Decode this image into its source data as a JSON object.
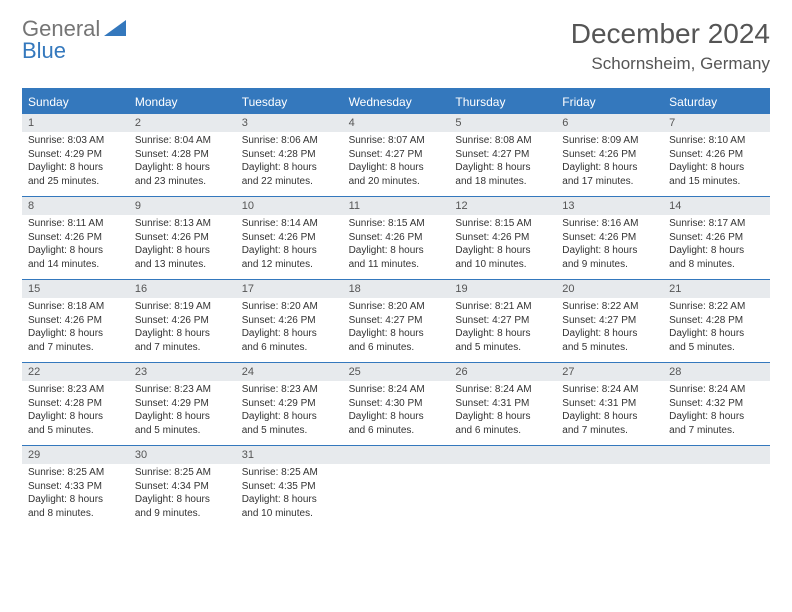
{
  "logo": {
    "line1": "General",
    "line2": "Blue"
  },
  "title": "December 2024",
  "location": "Schornsheim, Germany",
  "colors": {
    "accent": "#3478bd",
    "daynum_bg": "#e7eaed",
    "text": "#333333",
    "logo_gray": "#757575"
  },
  "day_names": [
    "Sunday",
    "Monday",
    "Tuesday",
    "Wednesday",
    "Thursday",
    "Friday",
    "Saturday"
  ],
  "weeks": [
    [
      {
        "n": "1",
        "sr": "Sunrise: 8:03 AM",
        "ss": "Sunset: 4:29 PM",
        "d1": "Daylight: 8 hours",
        "d2": "and 25 minutes."
      },
      {
        "n": "2",
        "sr": "Sunrise: 8:04 AM",
        "ss": "Sunset: 4:28 PM",
        "d1": "Daylight: 8 hours",
        "d2": "and 23 minutes."
      },
      {
        "n": "3",
        "sr": "Sunrise: 8:06 AM",
        "ss": "Sunset: 4:28 PM",
        "d1": "Daylight: 8 hours",
        "d2": "and 22 minutes."
      },
      {
        "n": "4",
        "sr": "Sunrise: 8:07 AM",
        "ss": "Sunset: 4:27 PM",
        "d1": "Daylight: 8 hours",
        "d2": "and 20 minutes."
      },
      {
        "n": "5",
        "sr": "Sunrise: 8:08 AM",
        "ss": "Sunset: 4:27 PM",
        "d1": "Daylight: 8 hours",
        "d2": "and 18 minutes."
      },
      {
        "n": "6",
        "sr": "Sunrise: 8:09 AM",
        "ss": "Sunset: 4:26 PM",
        "d1": "Daylight: 8 hours",
        "d2": "and 17 minutes."
      },
      {
        "n": "7",
        "sr": "Sunrise: 8:10 AM",
        "ss": "Sunset: 4:26 PM",
        "d1": "Daylight: 8 hours",
        "d2": "and 15 minutes."
      }
    ],
    [
      {
        "n": "8",
        "sr": "Sunrise: 8:11 AM",
        "ss": "Sunset: 4:26 PM",
        "d1": "Daylight: 8 hours",
        "d2": "and 14 minutes."
      },
      {
        "n": "9",
        "sr": "Sunrise: 8:13 AM",
        "ss": "Sunset: 4:26 PM",
        "d1": "Daylight: 8 hours",
        "d2": "and 13 minutes."
      },
      {
        "n": "10",
        "sr": "Sunrise: 8:14 AM",
        "ss": "Sunset: 4:26 PM",
        "d1": "Daylight: 8 hours",
        "d2": "and 12 minutes."
      },
      {
        "n": "11",
        "sr": "Sunrise: 8:15 AM",
        "ss": "Sunset: 4:26 PM",
        "d1": "Daylight: 8 hours",
        "d2": "and 11 minutes."
      },
      {
        "n": "12",
        "sr": "Sunrise: 8:15 AM",
        "ss": "Sunset: 4:26 PM",
        "d1": "Daylight: 8 hours",
        "d2": "and 10 minutes."
      },
      {
        "n": "13",
        "sr": "Sunrise: 8:16 AM",
        "ss": "Sunset: 4:26 PM",
        "d1": "Daylight: 8 hours",
        "d2": "and 9 minutes."
      },
      {
        "n": "14",
        "sr": "Sunrise: 8:17 AM",
        "ss": "Sunset: 4:26 PM",
        "d1": "Daylight: 8 hours",
        "d2": "and 8 minutes."
      }
    ],
    [
      {
        "n": "15",
        "sr": "Sunrise: 8:18 AM",
        "ss": "Sunset: 4:26 PM",
        "d1": "Daylight: 8 hours",
        "d2": "and 7 minutes."
      },
      {
        "n": "16",
        "sr": "Sunrise: 8:19 AM",
        "ss": "Sunset: 4:26 PM",
        "d1": "Daylight: 8 hours",
        "d2": "and 7 minutes."
      },
      {
        "n": "17",
        "sr": "Sunrise: 8:20 AM",
        "ss": "Sunset: 4:26 PM",
        "d1": "Daylight: 8 hours",
        "d2": "and 6 minutes."
      },
      {
        "n": "18",
        "sr": "Sunrise: 8:20 AM",
        "ss": "Sunset: 4:27 PM",
        "d1": "Daylight: 8 hours",
        "d2": "and 6 minutes."
      },
      {
        "n": "19",
        "sr": "Sunrise: 8:21 AM",
        "ss": "Sunset: 4:27 PM",
        "d1": "Daylight: 8 hours",
        "d2": "and 5 minutes."
      },
      {
        "n": "20",
        "sr": "Sunrise: 8:22 AM",
        "ss": "Sunset: 4:27 PM",
        "d1": "Daylight: 8 hours",
        "d2": "and 5 minutes."
      },
      {
        "n": "21",
        "sr": "Sunrise: 8:22 AM",
        "ss": "Sunset: 4:28 PM",
        "d1": "Daylight: 8 hours",
        "d2": "and 5 minutes."
      }
    ],
    [
      {
        "n": "22",
        "sr": "Sunrise: 8:23 AM",
        "ss": "Sunset: 4:28 PM",
        "d1": "Daylight: 8 hours",
        "d2": "and 5 minutes."
      },
      {
        "n": "23",
        "sr": "Sunrise: 8:23 AM",
        "ss": "Sunset: 4:29 PM",
        "d1": "Daylight: 8 hours",
        "d2": "and 5 minutes."
      },
      {
        "n": "24",
        "sr": "Sunrise: 8:23 AM",
        "ss": "Sunset: 4:29 PM",
        "d1": "Daylight: 8 hours",
        "d2": "and 5 minutes."
      },
      {
        "n": "25",
        "sr": "Sunrise: 8:24 AM",
        "ss": "Sunset: 4:30 PM",
        "d1": "Daylight: 8 hours",
        "d2": "and 6 minutes."
      },
      {
        "n": "26",
        "sr": "Sunrise: 8:24 AM",
        "ss": "Sunset: 4:31 PM",
        "d1": "Daylight: 8 hours",
        "d2": "and 6 minutes."
      },
      {
        "n": "27",
        "sr": "Sunrise: 8:24 AM",
        "ss": "Sunset: 4:31 PM",
        "d1": "Daylight: 8 hours",
        "d2": "and 7 minutes."
      },
      {
        "n": "28",
        "sr": "Sunrise: 8:24 AM",
        "ss": "Sunset: 4:32 PM",
        "d1": "Daylight: 8 hours",
        "d2": "and 7 minutes."
      }
    ],
    [
      {
        "n": "29",
        "sr": "Sunrise: 8:25 AM",
        "ss": "Sunset: 4:33 PM",
        "d1": "Daylight: 8 hours",
        "d2": "and 8 minutes."
      },
      {
        "n": "30",
        "sr": "Sunrise: 8:25 AM",
        "ss": "Sunset: 4:34 PM",
        "d1": "Daylight: 8 hours",
        "d2": "and 9 minutes."
      },
      {
        "n": "31",
        "sr": "Sunrise: 8:25 AM",
        "ss": "Sunset: 4:35 PM",
        "d1": "Daylight: 8 hours",
        "d2": "and 10 minutes."
      },
      {
        "n": "",
        "sr": "",
        "ss": "",
        "d1": "",
        "d2": ""
      },
      {
        "n": "",
        "sr": "",
        "ss": "",
        "d1": "",
        "d2": ""
      },
      {
        "n": "",
        "sr": "",
        "ss": "",
        "d1": "",
        "d2": ""
      },
      {
        "n": "",
        "sr": "",
        "ss": "",
        "d1": "",
        "d2": ""
      }
    ]
  ]
}
